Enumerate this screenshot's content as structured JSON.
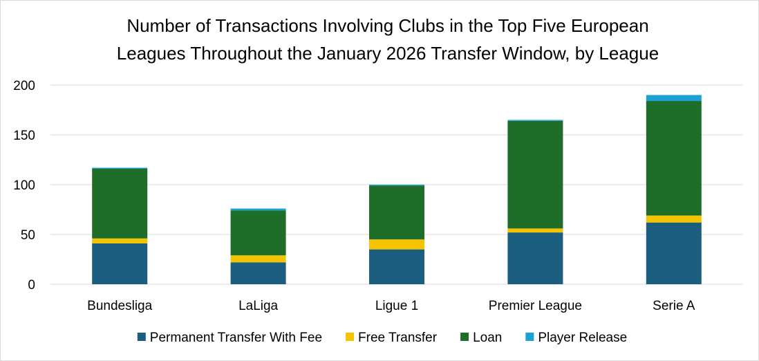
{
  "chart_data": {
    "type": "bar",
    "stacked": true,
    "title_lines": [
      "Number of Transactions Involving Clubs in the Top Five European",
      "Leagues Throughout the January 2026 Transfer Window, by League"
    ],
    "xlabel": "",
    "ylabel": "",
    "ylim": [
      0,
      200
    ],
    "yticks": [
      0,
      50,
      100,
      150,
      200
    ],
    "grid": true,
    "legend_position": "bottom",
    "categories": [
      "Bundesliga",
      "LaLiga",
      "Ligue 1",
      "Premier League",
      "Serie A"
    ],
    "series": [
      {
        "name": "Permanent Transfer With Fee",
        "color": "#1b5e80",
        "values": [
          41,
          22,
          35,
          52,
          62
        ]
      },
      {
        "name": "Free Transfer",
        "color": "#f5c400",
        "values": [
          5,
          7,
          10,
          4,
          7
        ]
      },
      {
        "name": "Loan",
        "color": "#1e6e2a",
        "values": [
          70,
          45,
          54,
          108,
          115
        ]
      },
      {
        "name": "Player Release",
        "color": "#1ba1d4",
        "values": [
          1,
          2,
          1,
          1,
          6
        ]
      }
    ]
  }
}
